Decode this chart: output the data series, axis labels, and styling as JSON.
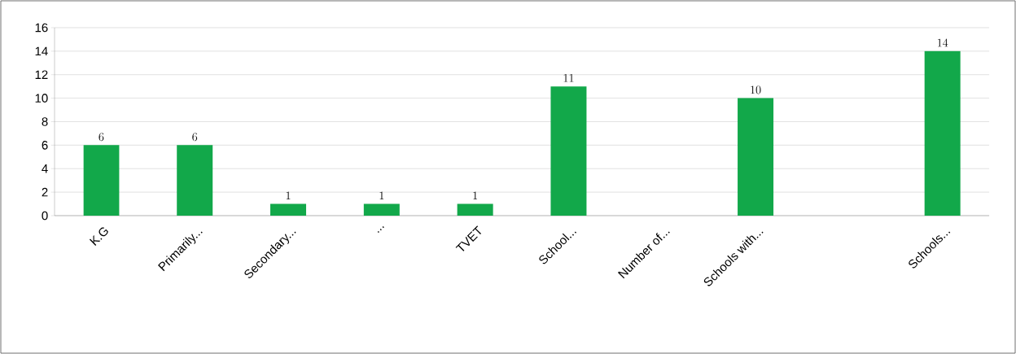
{
  "chart_data": {
    "type": "bar",
    "categories": [
      "K.G",
      "Primarily...",
      "Secondary...",
      "...",
      "TVET",
      "School...",
      "Number of...",
      "Schools with...",
      null,
      "Schools..."
    ],
    "values": [
      6,
      6,
      1,
      1,
      1,
      11,
      null,
      10,
      null,
      14
    ],
    "color": "#12a84a",
    "ylim": [
      0,
      16
    ],
    "yticks": [
      0,
      2,
      4,
      6,
      8,
      10,
      12,
      14,
      16
    ],
    "grid": "y",
    "data_labels": true
  }
}
